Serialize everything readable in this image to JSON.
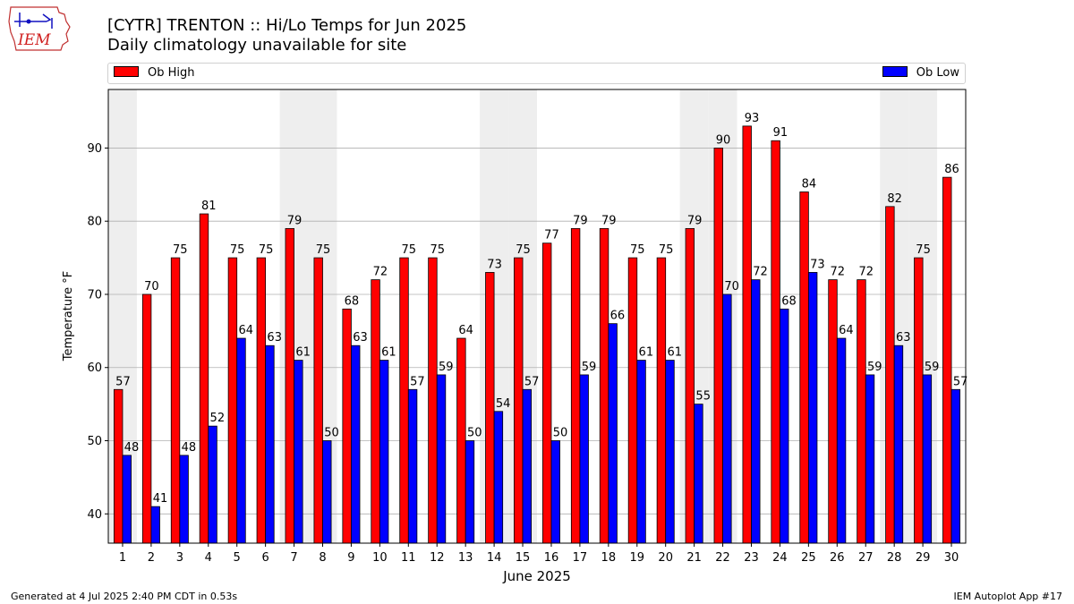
{
  "logo": {
    "name": "iem-logo-icon",
    "text": "IEM"
  },
  "chart_data": {
    "type": "bar",
    "title": "[CYTR] TRENTON :: Hi/Lo Temps for Jun 2025",
    "subtitle": "Daily climatology unavailable for site",
    "xlabel": "June 2025",
    "ylabel": "Temperature °F",
    "ylim": [
      36,
      98
    ],
    "yticks": [
      40,
      50,
      60,
      70,
      80,
      90
    ],
    "grid": "horizontal",
    "legend_placement": "top",
    "weekend_shading": true,
    "shaded_days": [
      1,
      7,
      8,
      14,
      15,
      21,
      22,
      28,
      29
    ],
    "categories": [
      "1",
      "2",
      "3",
      "4",
      "5",
      "6",
      "7",
      "8",
      "9",
      "10",
      "11",
      "12",
      "13",
      "14",
      "15",
      "16",
      "17",
      "18",
      "19",
      "20",
      "21",
      "22",
      "23",
      "24",
      "25",
      "26",
      "27",
      "28",
      "29",
      "30"
    ],
    "series": [
      {
        "name": "Ob High",
        "color": "#ff0000",
        "values": [
          57,
          70,
          75,
          81,
          75,
          75,
          79,
          75,
          68,
          72,
          75,
          75,
          64,
          73,
          75,
          77,
          79,
          79,
          75,
          75,
          79,
          90,
          93,
          91,
          84,
          72,
          72,
          82,
          75,
          86
        ]
      },
      {
        "name": "Ob Low",
        "color": "#0000ff",
        "values": [
          48,
          41,
          48,
          52,
          64,
          63,
          61,
          50,
          63,
          61,
          57,
          59,
          50,
          54,
          57,
          50,
          59,
          66,
          61,
          61,
          55,
          70,
          72,
          68,
          73,
          64,
          59,
          63,
          59,
          57
        ]
      }
    ]
  },
  "footer": {
    "generated": "Generated at 4 Jul 2025 2:40 PM CDT in 0.53s",
    "app": "IEM Autoplot App #17"
  }
}
